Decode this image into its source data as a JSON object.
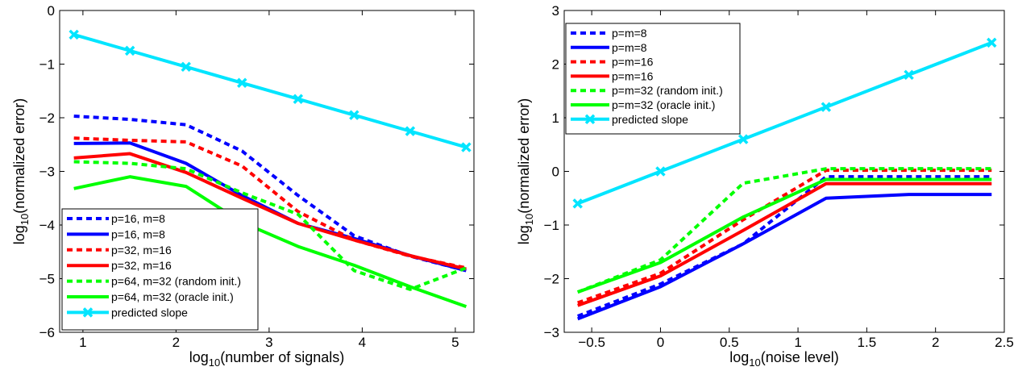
{
  "chart_data": [
    {
      "type": "line",
      "title": "",
      "xlabel": {
        "prefix": "log",
        "sub": "10",
        "suffix": "(number of signals)"
      },
      "ylabel": {
        "prefix": "log",
        "sub": "10",
        "suffix": "(normalized error)"
      },
      "xlim": [
        0.75,
        5.2
      ],
      "ylim": [
        -6,
        0
      ],
      "xticks": [
        1,
        2,
        3,
        4,
        5
      ],
      "yticks": [
        -6,
        -5,
        -4,
        -3,
        -2,
        -1,
        0
      ],
      "xtick_labels": [
        "1",
        "2",
        "3",
        "4",
        "5"
      ],
      "ytick_labels": [
        "−6",
        "−5",
        "−4",
        "−3",
        "−2",
        "−1",
        "0"
      ],
      "grid": false,
      "legend_placement": "bottom-left",
      "x": [
        0.903,
        1.505,
        2.107,
        2.709,
        3.311,
        3.913,
        4.515,
        5.117
      ],
      "series": [
        {
          "name": "p=16, m=8",
          "color": "#0000ff",
          "dash": "dotted",
          "values": [
            -1.97,
            -2.03,
            -2.13,
            -2.62,
            -3.45,
            -4.2,
            -4.58,
            -4.85
          ]
        },
        {
          "name": "p=16, m=8",
          "color": "#0000ff",
          "dash": "solid",
          "values": [
            -2.48,
            -2.47,
            -2.85,
            -3.45,
            -3.97,
            -4.25,
            -4.57,
            -4.85
          ]
        },
        {
          "name": "p=32, m=16",
          "color": "#ff0000",
          "dash": "dotted",
          "values": [
            -2.38,
            -2.42,
            -2.45,
            -2.9,
            -3.75,
            -4.28,
            -4.58,
            -4.8
          ]
        },
        {
          "name": "p=32, m=16",
          "color": "#ff0000",
          "dash": "solid",
          "values": [
            -2.75,
            -2.67,
            -3.02,
            -3.5,
            -3.97,
            -4.28,
            -4.57,
            -4.82
          ]
        },
        {
          "name": "p=64, m=32 (random init.)",
          "color": "#00ff00",
          "dash": "dotted",
          "values": [
            -2.82,
            -2.85,
            -2.95,
            -3.4,
            -3.8,
            -4.85,
            -5.2,
            -4.8
          ]
        },
        {
          "name": "p=64, m=32 (oracle init.)",
          "color": "#00ff00",
          "dash": "solid",
          "values": [
            -3.32,
            -3.1,
            -3.28,
            -3.95,
            -4.4,
            -4.75,
            -5.15,
            -5.52
          ]
        },
        {
          "name": "predicted slope",
          "color": "#00e5ff",
          "dash": "solid",
          "marker": "x",
          "values": [
            -0.45,
            -0.75,
            -1.05,
            -1.35,
            -1.65,
            -1.95,
            -2.25,
            -2.55
          ]
        }
      ]
    },
    {
      "type": "line",
      "title": "",
      "xlabel": {
        "prefix": "log",
        "sub": "10",
        "suffix": "(noise level)"
      },
      "ylabel": {
        "prefix": "log",
        "sub": "10",
        "suffix": "(normalized error)"
      },
      "xlim": [
        -0.7,
        2.5
      ],
      "ylim": [
        -3,
        3
      ],
      "xticks": [
        -0.5,
        0,
        0.5,
        1,
        1.5,
        2,
        2.5
      ],
      "yticks": [
        -3,
        -2,
        -1,
        0,
        1,
        2,
        3
      ],
      "xtick_labels": [
        "−0.5",
        "0",
        "0.5",
        "1",
        "1.5",
        "2",
        "2.5"
      ],
      "ytick_labels": [
        "−3",
        "−2",
        "−1",
        "0",
        "1",
        "2",
        "3"
      ],
      "grid": false,
      "legend_placement": "top-left",
      "x": [
        -0.602,
        0,
        0.602,
        1.204,
        1.806,
        2.408
      ],
      "series": [
        {
          "name": "p=m=8",
          "color": "#0000ff",
          "dash": "dotted",
          "values": [
            -2.7,
            -2.1,
            -1.35,
            -0.1,
            -0.1,
            -0.1
          ]
        },
        {
          "name": "p=m=8",
          "color": "#0000ff",
          "dash": "solid",
          "values": [
            -2.75,
            -2.15,
            -1.35,
            -0.5,
            -0.43,
            -0.43
          ]
        },
        {
          "name": "p=m=16",
          "color": "#ff0000",
          "dash": "dotted",
          "values": [
            -2.45,
            -1.9,
            -0.9,
            0.02,
            0.02,
            0.02
          ]
        },
        {
          "name": "p=m=16",
          "color": "#ff0000",
          "dash": "solid",
          "values": [
            -2.5,
            -1.95,
            -1.1,
            -0.23,
            -0.23,
            -0.23
          ]
        },
        {
          "name": "p=m=32 (random init.)",
          "color": "#00ff00",
          "dash": "dotted",
          "values": [
            -2.25,
            -1.65,
            -0.22,
            0.05,
            0.05,
            0.05
          ]
        },
        {
          "name": "p=m=32 (oracle init.)",
          "color": "#00ff00",
          "dash": "solid",
          "values": [
            -2.25,
            -1.7,
            -0.85,
            -0.15,
            -0.15,
            -0.15
          ]
        },
        {
          "name": "predicted slope",
          "color": "#00e5ff",
          "dash": "solid",
          "marker": "x",
          "values": [
            -0.6,
            0.0,
            0.6,
            1.2,
            1.8,
            2.4
          ]
        }
      ]
    }
  ]
}
